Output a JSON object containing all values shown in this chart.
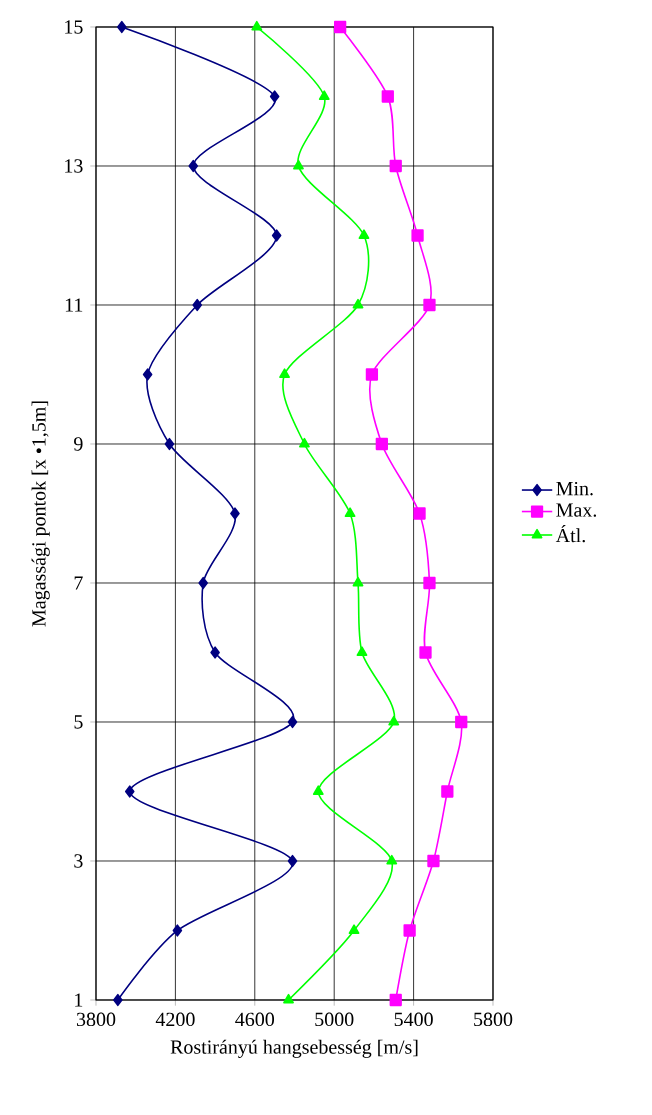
{
  "chart_data": {
    "type": "line",
    "xlabel": "Rostirányú hangsebesség [m/s]",
    "ylabel": "Magassági pontok [x •1,5m]",
    "xlim": [
      3800,
      5800
    ],
    "xticks": [
      3800,
      4200,
      4600,
      5000,
      5400,
      5800
    ],
    "ylim": [
      1,
      15
    ],
    "yticks": [
      1,
      3,
      5,
      7,
      9,
      11,
      13,
      15
    ],
    "grid": true,
    "legend": "right",
    "line_style": "solid",
    "series": [
      {
        "name": "Min.",
        "color": "#000080",
        "marker": "diamond",
        "x": [
          3910,
          4210,
          4790,
          3970,
          4790,
          4400,
          4340,
          4500,
          4170,
          4060,
          4310,
          4710,
          4290,
          4700,
          3930
        ],
        "values": [
          1,
          2,
          3,
          4,
          5,
          6,
          7,
          8,
          9,
          10,
          11,
          12,
          13,
          14,
          15
        ]
      },
      {
        "name": "Max.",
        "color": "#ff00ff",
        "marker": "square",
        "x": [
          5310,
          5380,
          5500,
          5570,
          5640,
          5460,
          5480,
          5430,
          5240,
          5190,
          5480,
          5420,
          5310,
          5270,
          5030
        ],
        "values": [
          1,
          2,
          3,
          4,
          5,
          6,
          7,
          8,
          9,
          10,
          11,
          12,
          13,
          14,
          15
        ]
      },
      {
        "name": "Átl.",
        "color": "#00ff00",
        "marker": "triangle",
        "x": [
          4770,
          5100,
          5290,
          4920,
          5300,
          5140,
          5120,
          5080,
          4850,
          4750,
          5120,
          5150,
          4820,
          4950,
          4610
        ],
        "values": [
          1,
          2,
          3,
          4,
          5,
          6,
          7,
          8,
          9,
          10,
          11,
          12,
          13,
          14,
          15
        ]
      }
    ]
  }
}
